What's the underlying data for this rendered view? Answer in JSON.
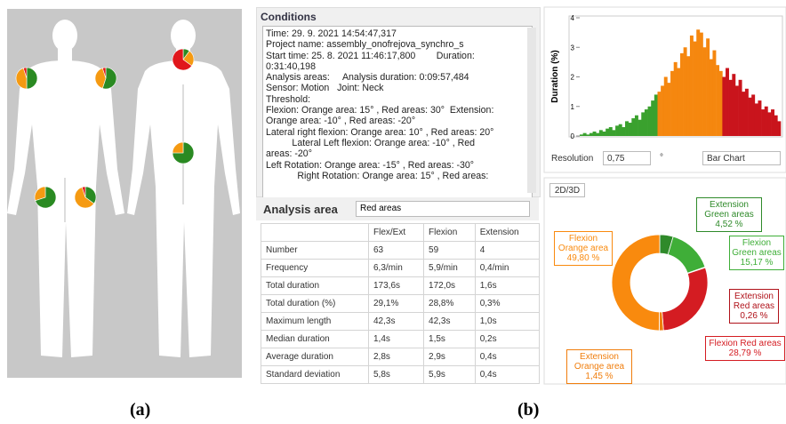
{
  "captions": [
    "(a)",
    "(b)"
  ],
  "body_map": {
    "colors": [
      "#2a8a22",
      "#f59a12",
      "#e0161b"
    ],
    "pies": [
      [
        50,
        45,
        5
      ],
      [
        55,
        40,
        5
      ],
      [
        70,
        30,
        0
      ],
      [
        35,
        60,
        5
      ],
      [
        10,
        25,
        65
      ],
      [
        75,
        25,
        0
      ]
    ]
  },
  "conditions": {
    "title": "Conditions",
    "lines": [
      "Time: 29. 9. 2021 14:54:47,317",
      "Project name: assembly_onofrejova_synchro_s",
      "Start time: 25. 8. 2021 11:46:17,800        Duration:",
      "0:31:40,198",
      "Analysis areas:     Analysis duration: 0:09:57,484",
      "Sensor: Motion   Joint: Neck",
      "Threshold:",
      "Flexion: Orange area: 15° , Red areas: 30°  Extension:",
      "Orange area: -10° , Red areas: -20°",
      "Lateral right flexion: Orange area: 10° , Red areas: 20°",
      "          Lateral Left flexion: Orange area: -10° , Red",
      "areas: -20°",
      "Left Rotation: Orange area: -15° , Red areas: -30°",
      "            Right Rotation: Orange area: 15° , Red areas:"
    ]
  },
  "analysis_area": {
    "label": "Analysis area",
    "selected": "Red areas"
  },
  "table": {
    "header": [
      "Flex/Ext",
      "Flexion",
      "Extension"
    ],
    "rows": [
      [
        "Number",
        "63",
        "59",
        "4"
      ],
      [
        "Frequency",
        "6,3/min",
        "5,9/min",
        "0,4/min"
      ],
      [
        "Total duration",
        "173,6s",
        "172,0s",
        "1,6s"
      ],
      [
        "Total duration (%)",
        "29,1%",
        "28,8%",
        "0,3%"
      ],
      [
        "Maximum length",
        "42,3s",
        "42,3s",
        "1,0s"
      ],
      [
        "Median duration",
        "1,4s",
        "1,5s",
        "0,2s"
      ],
      [
        "Average duration",
        "2,8s",
        "2,9s",
        "0,4s"
      ],
      [
        "Standard deviation",
        "5,8s",
        "5,9s",
        "0,4s"
      ]
    ]
  },
  "chart_data": [
    {
      "type": "bar",
      "y_label": "Duration (%)",
      "ylim": [
        0,
        4
      ],
      "yticks": [
        0,
        1,
        2,
        3,
        4
      ],
      "series": [
        {
          "color": "#3aa12e",
          "values": [
            0.05,
            0.1,
            0.05,
            0.1,
            0.15,
            0.1,
            0.2,
            0.15,
            0.25,
            0.3,
            0.2,
            0.35,
            0.4,
            0.3,
            0.5,
            0.45,
            0.6,
            0.7,
            0.55,
            0.8,
            0.9,
            1.0,
            1.2,
            1.4
          ]
        },
        {
          "color": "#f5870f",
          "values": [
            1.5,
            1.7,
            2.0,
            1.8,
            2.2,
            2.5,
            2.3,
            2.8,
            3.0,
            2.7,
            3.4,
            3.2,
            3.6,
            3.5,
            3.0,
            3.3,
            2.6,
            2.9,
            2.4,
            2.2
          ]
        },
        {
          "color": "#c9141c",
          "values": [
            2.0,
            2.3,
            1.9,
            2.1,
            1.7,
            1.9,
            1.5,
            1.6,
            1.3,
            1.4,
            1.1,
            1.2,
            0.9,
            1.0,
            0.8,
            0.9,
            0.7,
            0.5
          ]
        }
      ]
    },
    {
      "type": "donut",
      "categories": [
        "Extension Green areas",
        "Flexion Green areas",
        "Extension Red areas",
        "Flexion Red areas",
        "Extension Orange area",
        "Flexion Orange area"
      ],
      "values": [
        4.52,
        15.17,
        0.26,
        28.79,
        1.45,
        49.8
      ],
      "value_labels": [
        "4,52 %",
        "15,17 %",
        "0,26 %",
        "28,79 %",
        "1,45 %",
        "49,80 %"
      ],
      "colors": [
        "#2f8a2a",
        "#3fae38",
        "#b0121a",
        "#d41c22",
        "#f07d0c",
        "#f98a0e"
      ]
    }
  ],
  "controls": {
    "resolution_label": "Resolution",
    "resolution_value": "0,75",
    "resolution_unit": "°",
    "chart_type": "Bar Chart",
    "view_button": "2D/3D"
  }
}
